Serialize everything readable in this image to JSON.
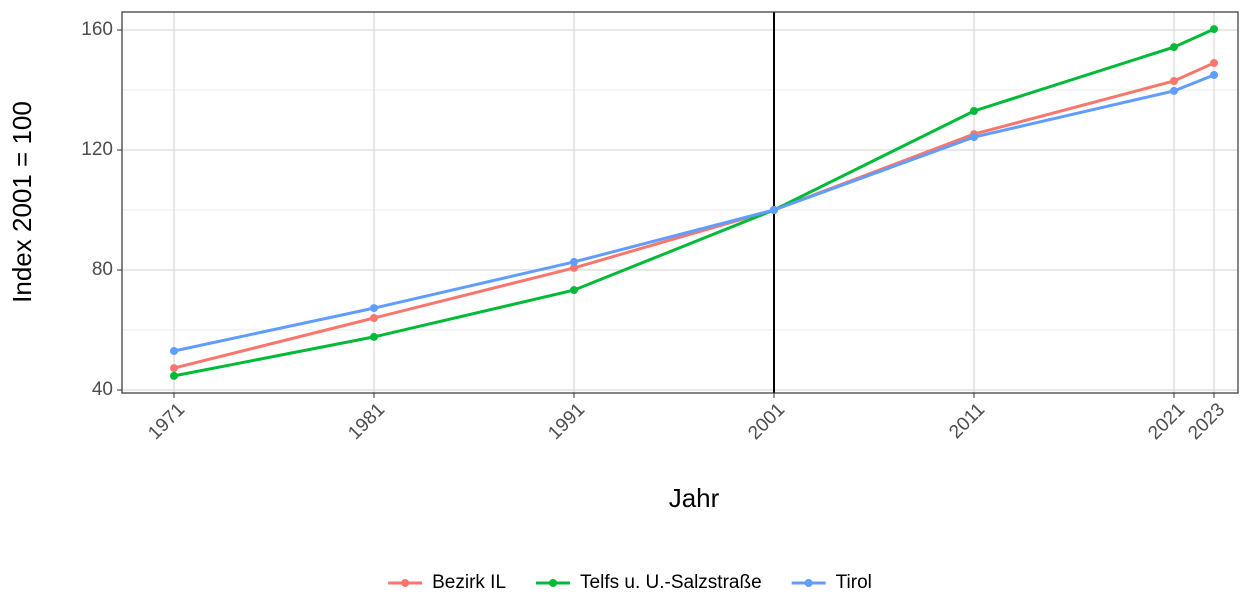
{
  "chart_data": {
    "type": "line",
    "x_label": "Jahr",
    "y_label": "Index 2001 = 100",
    "x": [
      1971,
      1981,
      1991,
      2001,
      2011,
      2021,
      2023
    ],
    "series": [
      {
        "name": "Bezirk IL",
        "color": "#F8766D",
        "values": [
          47.3,
          64,
          80.7,
          100,
          125.3,
          143,
          149
        ]
      },
      {
        "name": "Telfs u. U.-Salzstraße",
        "color": "#00BA38",
        "values": [
          44.7,
          57.7,
          73.3,
          100,
          133,
          154.3,
          160.3
        ]
      },
      {
        "name": "Tirol",
        "color": "#619CFF",
        "values": [
          53,
          67.3,
          82.7,
          100,
          124.3,
          139.7,
          145
        ]
      }
    ],
    "xlim": [
      1968.4,
      2024.2
    ],
    "xticks": [
      1971,
      1981,
      1991,
      2001,
      2011,
      2021,
      2023
    ],
    "ylim": [
      39,
      166
    ],
    "yticks": [
      40,
      80,
      120,
      160
    ],
    "vline": 2001,
    "grid": true,
    "legend": "bottom"
  }
}
